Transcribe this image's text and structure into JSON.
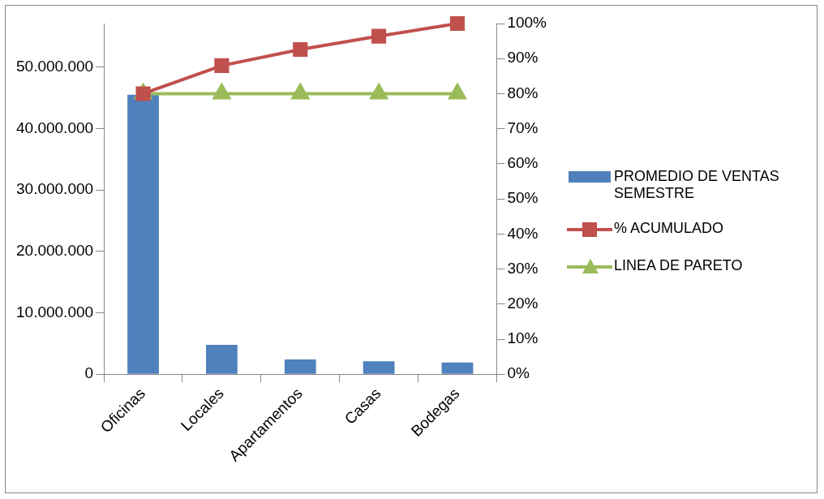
{
  "chart_data": {
    "type": "bar",
    "categories": [
      "Oficinas",
      "Locales",
      "Apartamentos",
      "Casas",
      "Bodegas"
    ],
    "series": [
      {
        "name": "PROMEDIO DE VENTAS SEMESTRE",
        "color": "#4f81bd",
        "values": [
          45500000,
          4800000,
          2400000,
          2100000,
          1900000
        ]
      },
      {
        "name": "% ACUMULADO",
        "type": "line",
        "axis": "y2",
        "color": "#c0504d",
        "marker": "square",
        "values": [
          80,
          88,
          92.6,
          96.4,
          100
        ]
      },
      {
        "name": "LINEA DE PARETO",
        "type": "line",
        "axis": "y2",
        "color": "#9bbb59",
        "marker": "triangle",
        "values": [
          80,
          80,
          80,
          80,
          80
        ]
      }
    ],
    "ylim": [
      0,
      57100000
    ],
    "yticks": [
      {
        "value": 0,
        "label": "0"
      },
      {
        "value": 10000000,
        "label": "10.000.000"
      },
      {
        "value": 20000000,
        "label": "20.000.000"
      },
      {
        "value": 30000000,
        "label": "30.000.000"
      },
      {
        "value": 40000000,
        "label": "40.000.000"
      },
      {
        "value": 50000000,
        "label": "50.000.000"
      }
    ],
    "y2lim": [
      0,
      100
    ],
    "y2ticks": [
      {
        "value": 0,
        "label": "0%"
      },
      {
        "value": 10,
        "label": "10%"
      },
      {
        "value": 20,
        "label": "20%"
      },
      {
        "value": 30,
        "label": "30%"
      },
      {
        "value": 40,
        "label": "40%"
      },
      {
        "value": 50,
        "label": "50%"
      },
      {
        "value": 60,
        "label": "60%"
      },
      {
        "value": 70,
        "label": "70%"
      },
      {
        "value": 80,
        "label": "80%"
      },
      {
        "value": 90,
        "label": "90%"
      },
      {
        "value": 100,
        "label": "100%"
      }
    ],
    "grid": false,
    "legend": "right"
  }
}
